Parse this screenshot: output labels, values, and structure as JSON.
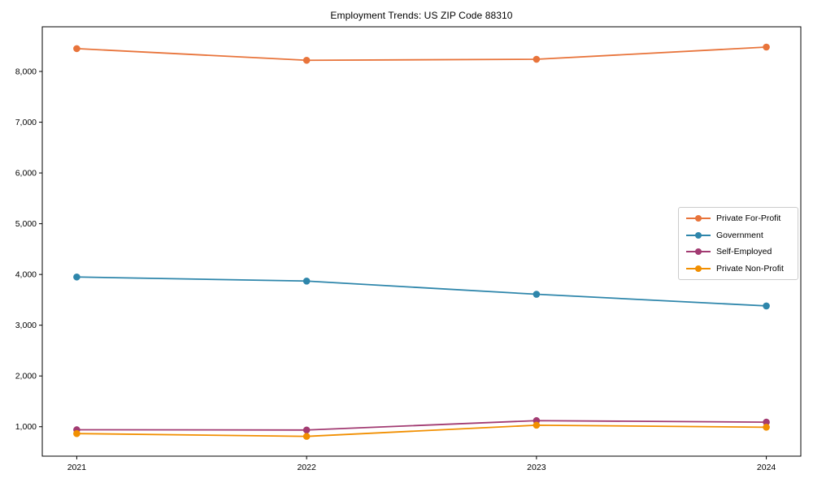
{
  "chart_data": {
    "type": "line",
    "title": "Employment Trends: US ZIP Code 88310",
    "xlabel": "",
    "ylabel": "",
    "x": [
      2021,
      2022,
      2023,
      2024
    ],
    "xtick_labels": [
      "2021",
      "2022",
      "2023",
      "2024"
    ],
    "yticks": [
      1000,
      2000,
      3000,
      4000,
      5000,
      6000,
      7000,
      8000
    ],
    "ytick_labels": [
      "1,000",
      "2,000",
      "3,000",
      "4,000",
      "5,000",
      "6,000",
      "7,000",
      "8,000"
    ],
    "xlim": [
      2020.85,
      2024.15
    ],
    "ylim": [
      420,
      8880
    ],
    "grid": false,
    "legend_position": "center-right",
    "series": [
      {
        "name": "Private For-Profit",
        "color": "#e8743b",
        "values": [
          8450,
          8220,
          8240,
          8480
        ]
      },
      {
        "name": "Government",
        "color": "#2e86ab",
        "values": [
          3950,
          3870,
          3610,
          3380
        ]
      },
      {
        "name": "Self-Employed",
        "color": "#a23b72",
        "values": [
          940,
          935,
          1120,
          1090
        ]
      },
      {
        "name": "Private Non-Profit",
        "color": "#f18f01",
        "values": [
          865,
          810,
          1030,
          990
        ]
      }
    ]
  }
}
